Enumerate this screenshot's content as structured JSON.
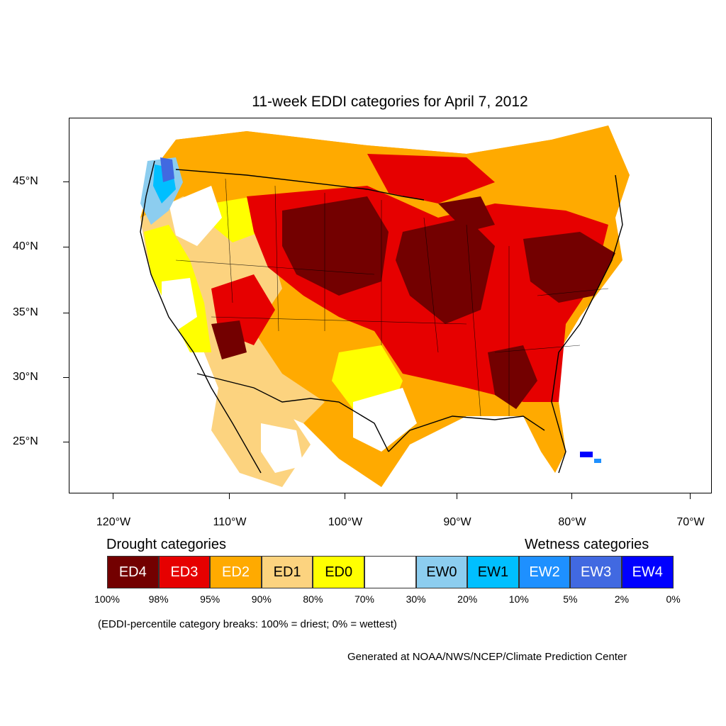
{
  "title": "11-week EDDI categories for April 7, 2012",
  "map": {
    "projection": "lambert-conformal-conus",
    "latitude_labels": [
      "45°N",
      "40°N",
      "35°N",
      "30°N",
      "25°N"
    ],
    "longitude_labels": [
      "120°W",
      "110°W",
      "100°W",
      "90°W",
      "80°W",
      "70°W"
    ],
    "dominant_pattern": "widespread drought (ED2–ED4) across the central and eastern US; wet categories (EW0–EW4) along the Pacific Northwest coast and in the Bahamas area"
  },
  "legend": {
    "drought_heading": "Drought categories",
    "wetness_heading": "Wetness categories",
    "categories": [
      {
        "label": "ED4",
        "color": "#730000",
        "text_color": "#ffffff"
      },
      {
        "label": "ED3",
        "color": "#e60000",
        "text_color": "#ffffff"
      },
      {
        "label": "ED2",
        "color": "#ffaa00",
        "text_color": "#ffffff"
      },
      {
        "label": "ED1",
        "color": "#fcd37f",
        "text_color": "#000000"
      },
      {
        "label": "ED0",
        "color": "#ffff00",
        "text_color": "#000000"
      },
      {
        "label": "",
        "color": "#ffffff",
        "text_color": "#000000"
      },
      {
        "label": "EW0",
        "color": "#8ccdef",
        "text_color": "#000000"
      },
      {
        "label": "EW1",
        "color": "#00bfff",
        "text_color": "#000000"
      },
      {
        "label": "EW2",
        "color": "#1e90ff",
        "text_color": "#ffffff"
      },
      {
        "label": "EW3",
        "color": "#4169e1",
        "text_color": "#ffffff"
      },
      {
        "label": "EW4",
        "color": "#0000ff",
        "text_color": "#ffffff"
      }
    ],
    "breaks": [
      "100%",
      "98%",
      "95%",
      "90%",
      "80%",
      "70%",
      "30%",
      "20%",
      "10%",
      "5%",
      "2%",
      "0%"
    ]
  },
  "note": "(EDDI-percentile category breaks: 100% = driest; 0% = wettest)",
  "credit": "Generated at NOAA/NWS/NCEP/Climate Prediction Center"
}
